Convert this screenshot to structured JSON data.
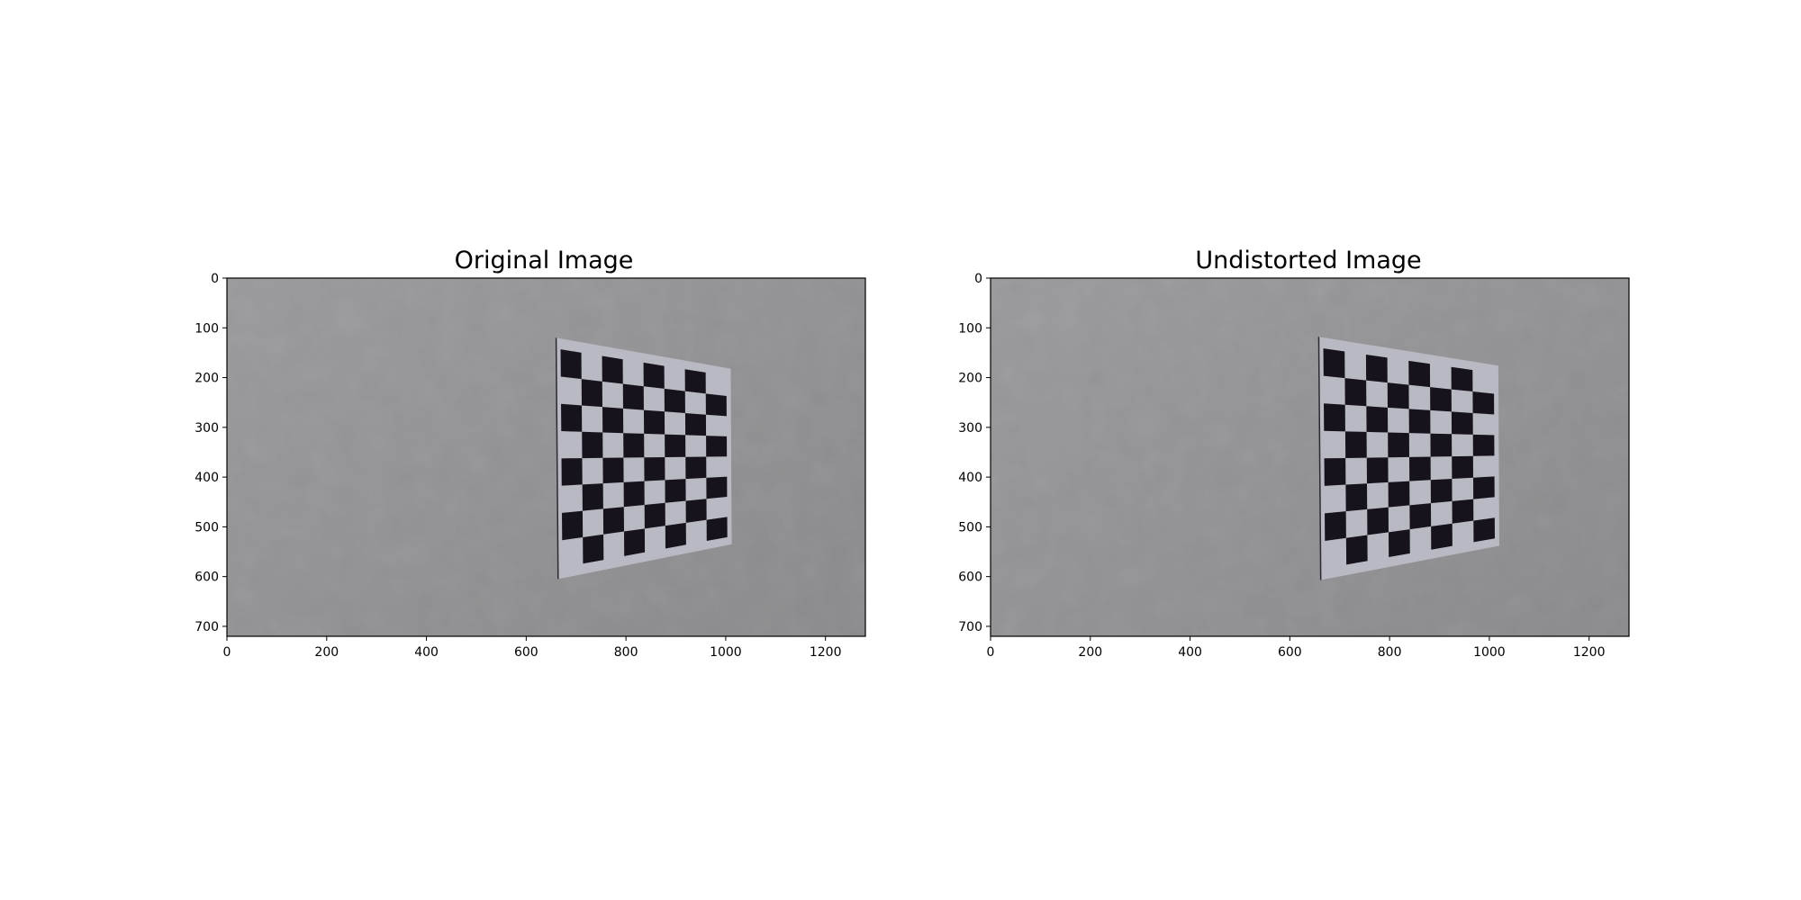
{
  "panels": [
    {
      "title": "Original Image",
      "x_ticks": [
        "0",
        "200",
        "400",
        "600",
        "800",
        "1000",
        "1200"
      ],
      "y_ticks": [
        "0",
        "100",
        "200",
        "300",
        "400",
        "500",
        "600",
        "700"
      ]
    },
    {
      "title": "Undistorted Image",
      "x_ticks": [
        "0",
        "200",
        "400",
        "600",
        "800",
        "1000",
        "1200"
      ],
      "y_ticks": [
        "0",
        "100",
        "200",
        "300",
        "400",
        "500",
        "600",
        "700"
      ]
    }
  ],
  "image": {
    "width": 1280,
    "height": 720,
    "board": {
      "rows": 8,
      "cols": 8
    },
    "colors": {
      "wall_top": "#9a9a9d",
      "wall_bottom": "#8a8a8c",
      "board_paper": "#b9b9c3",
      "board_square": "#16131c"
    }
  }
}
